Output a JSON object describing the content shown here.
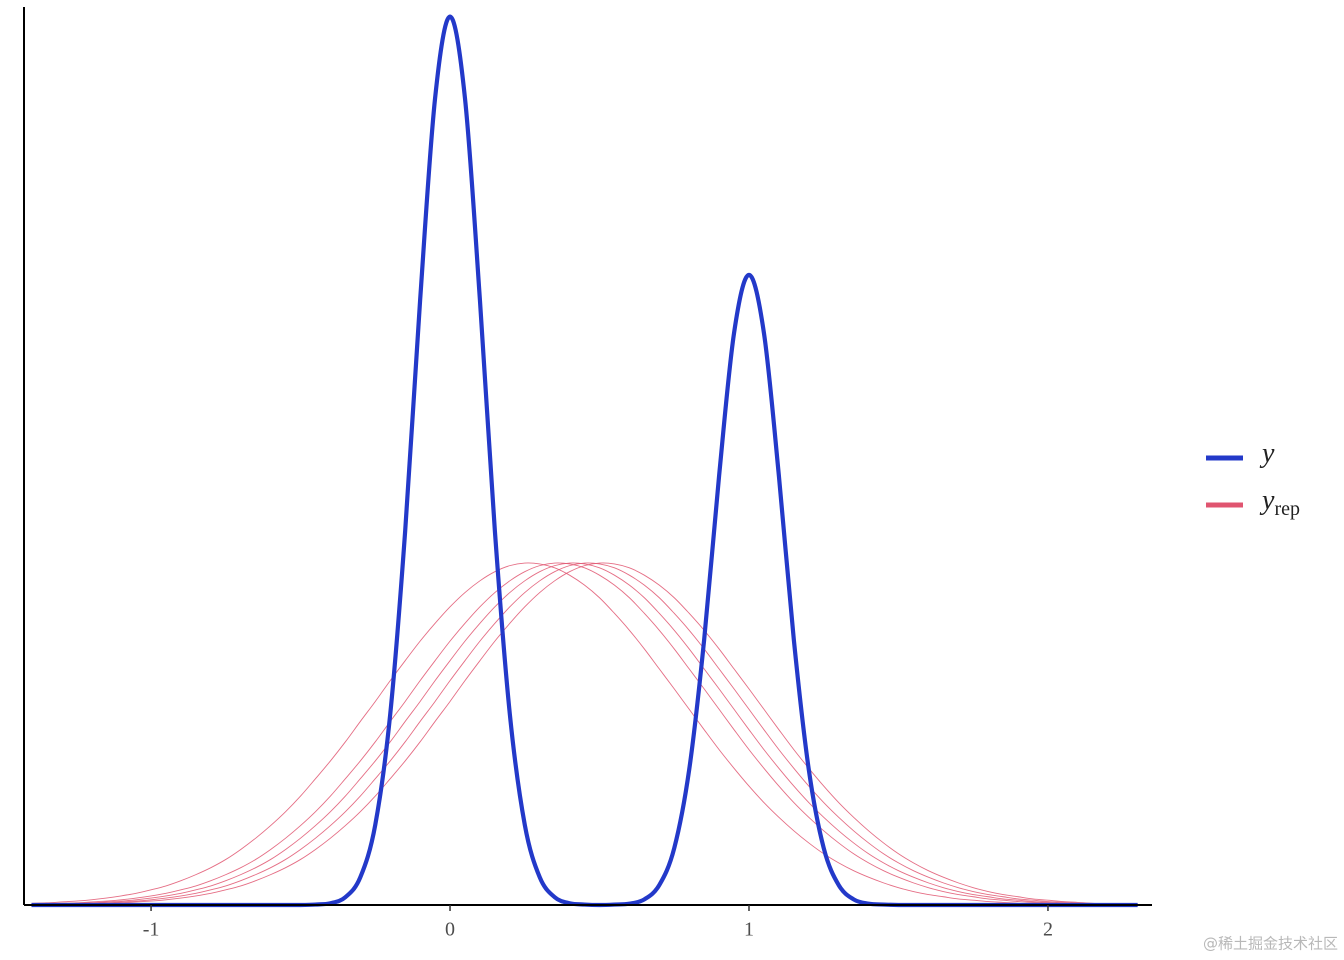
{
  "chart_data": {
    "type": "density",
    "watermark": "@稀土掘金技术社区",
    "x": [
      -1.4,
      -1.35,
      -1.3,
      -1.25,
      -1.2,
      -1.15,
      -1.1,
      -1.05,
      -1.0,
      -0.95,
      -0.9,
      -0.85,
      -0.8,
      -0.75,
      -0.7,
      -0.65,
      -0.6,
      -0.55,
      -0.5,
      -0.45,
      -0.4,
      -0.35,
      -0.3,
      -0.25,
      -0.2,
      -0.15,
      -0.1,
      -0.05,
      0,
      0.05,
      0.1,
      0.15,
      0.2,
      0.25,
      0.3,
      0.35,
      0.4,
      0.45,
      0.5,
      0.55,
      0.6,
      0.65,
      0.7,
      0.75,
      0.8,
      0.85,
      0.9,
      0.95,
      1.0,
      1.05,
      1.1,
      1.15,
      1.2,
      1.25,
      1.3,
      1.35,
      1.4,
      1.45,
      1.5,
      1.55,
      1.6,
      1.65,
      1.7,
      1.75,
      1.8,
      1.85,
      1.9,
      1.95,
      2.0,
      2.05,
      2.1,
      2.15,
      2.2,
      2.25,
      2.3
    ],
    "xlim": [
      -1.425,
      2.348
    ],
    "xticks": [
      -1,
      0,
      1,
      2
    ],
    "ylim": [
      0,
      2.06
    ],
    "series": [
      {
        "name": "y",
        "color": "#2339c9",
        "values": [
          0,
          0,
          0,
          0,
          0,
          0,
          0,
          0,
          0,
          0,
          0,
          0,
          0,
          0,
          0,
          0,
          0,
          0,
          0,
          0.001,
          0.004,
          0.018,
          0.064,
          0.185,
          0.44,
          0.862,
          1.394,
          1.859,
          2.047,
          1.859,
          1.394,
          0.862,
          0.44,
          0.185,
          0.064,
          0.018,
          0.004,
          0.001,
          0,
          0.001,
          0.003,
          0.013,
          0.046,
          0.131,
          0.312,
          0.611,
          0.989,
          1.318,
          1.452,
          1.318,
          0.989,
          0.611,
          0.312,
          0.131,
          0.046,
          0.013,
          0.003,
          0.001,
          0,
          0,
          0,
          0,
          0,
          0,
          0,
          0,
          0,
          0,
          0,
          0,
          0,
          0,
          0,
          0,
          0
        ]
      },
      {
        "name": "y",
        "subscript": "rep",
        "color": "#e05570",
        "values": [
          [
            0.001,
            0.002,
            0.003,
            0.004,
            0.005,
            0.007,
            0.009,
            0.012,
            0.016,
            0.021,
            0.027,
            0.035,
            0.044,
            0.056,
            0.07,
            0.086,
            0.105,
            0.128,
            0.154,
            0.183,
            0.215,
            0.251,
            0.291,
            0.332,
            0.376,
            0.423,
            0.469,
            0.517,
            0.563,
            0.608,
            0.649,
            0.687,
            0.72,
            0.747,
            0.768,
            0.782,
            0.788,
            0.786,
            0.777,
            0.76,
            0.737,
            0.708,
            0.672,
            0.633,
            0.59,
            0.544,
            0.498,
            0.451,
            0.404,
            0.358,
            0.315,
            0.274,
            0.236,
            0.202,
            0.171,
            0.143,
            0.118,
            0.097,
            0.079,
            0.064,
            0.051,
            0.04,
            0.031,
            0.024,
            0.019,
            0.014,
            0.011,
            0.008,
            0.006,
            0.004,
            0.003,
            0.002,
            0.002,
            0.001,
            0.001
          ],
          [
            0.001,
            0.001,
            0.002,
            0.003,
            0.004,
            0.005,
            0.007,
            0.009,
            0.012,
            0.016,
            0.021,
            0.027,
            0.035,
            0.044,
            0.056,
            0.07,
            0.086,
            0.105,
            0.128,
            0.154,
            0.183,
            0.215,
            0.251,
            0.291,
            0.332,
            0.376,
            0.423,
            0.469,
            0.517,
            0.563,
            0.608,
            0.649,
            0.687,
            0.72,
            0.747,
            0.768,
            0.782,
            0.788,
            0.786,
            0.777,
            0.76,
            0.737,
            0.708,
            0.672,
            0.633,
            0.59,
            0.544,
            0.498,
            0.451,
            0.404,
            0.358,
            0.315,
            0.274,
            0.236,
            0.202,
            0.171,
            0.143,
            0.118,
            0.097,
            0.079,
            0.064,
            0.051,
            0.04,
            0.031,
            0.024,
            0.019,
            0.014,
            0.011,
            0.008,
            0.006,
            0.004,
            0.003,
            0.002,
            0.002,
            0.001
          ],
          [
            0.002,
            0.003,
            0.004,
            0.005,
            0.007,
            0.009,
            0.012,
            0.016,
            0.021,
            0.027,
            0.035,
            0.044,
            0.056,
            0.07,
            0.086,
            0.105,
            0.128,
            0.154,
            0.183,
            0.215,
            0.251,
            0.291,
            0.332,
            0.376,
            0.423,
            0.469,
            0.517,
            0.563,
            0.608,
            0.649,
            0.687,
            0.72,
            0.747,
            0.768,
            0.782,
            0.788,
            0.786,
            0.777,
            0.76,
            0.737,
            0.708,
            0.672,
            0.633,
            0.59,
            0.544,
            0.498,
            0.451,
            0.404,
            0.358,
            0.315,
            0.274,
            0.236,
            0.202,
            0.171,
            0.143,
            0.118,
            0.097,
            0.079,
            0.064,
            0.051,
            0.04,
            0.031,
            0.024,
            0.019,
            0.014,
            0.011,
            0.008,
            0.006,
            0.004,
            0.003,
            0.002,
            0.002,
            0.001,
            0.001,
            0.001
          ],
          [
            0.001,
            0.001,
            0.001,
            0.002,
            0.003,
            0.004,
            0.005,
            0.007,
            0.009,
            0.012,
            0.016,
            0.021,
            0.027,
            0.035,
            0.044,
            0.056,
            0.07,
            0.086,
            0.105,
            0.128,
            0.154,
            0.183,
            0.215,
            0.251,
            0.291,
            0.332,
            0.376,
            0.423,
            0.469,
            0.517,
            0.563,
            0.608,
            0.649,
            0.687,
            0.72,
            0.747,
            0.768,
            0.782,
            0.788,
            0.786,
            0.777,
            0.76,
            0.737,
            0.708,
            0.672,
            0.633,
            0.59,
            0.544,
            0.498,
            0.451,
            0.404,
            0.358,
            0.315,
            0.274,
            0.236,
            0.202,
            0.171,
            0.143,
            0.118,
            0.097,
            0.079,
            0.064,
            0.051,
            0.04,
            0.031,
            0.024,
            0.019,
            0.014,
            0.011,
            0.008,
            0.006,
            0.004,
            0.003,
            0.002,
            0.002
          ],
          [
            0.004,
            0.005,
            0.007,
            0.009,
            0.012,
            0.016,
            0.021,
            0.027,
            0.035,
            0.044,
            0.056,
            0.07,
            0.086,
            0.105,
            0.128,
            0.154,
            0.183,
            0.215,
            0.251,
            0.291,
            0.332,
            0.376,
            0.423,
            0.469,
            0.517,
            0.563,
            0.608,
            0.649,
            0.687,
            0.72,
            0.747,
            0.768,
            0.782,
            0.788,
            0.786,
            0.777,
            0.76,
            0.737,
            0.708,
            0.672,
            0.633,
            0.59,
            0.544,
            0.498,
            0.451,
            0.404,
            0.358,
            0.315,
            0.274,
            0.236,
            0.202,
            0.171,
            0.143,
            0.118,
            0.097,
            0.079,
            0.064,
            0.051,
            0.04,
            0.031,
            0.024,
            0.019,
            0.014,
            0.011,
            0.008,
            0.006,
            0.004,
            0.003,
            0.002,
            0.002,
            0.001,
            0.001,
            0.001,
            0.001,
            0.001
          ]
        ]
      }
    ]
  }
}
